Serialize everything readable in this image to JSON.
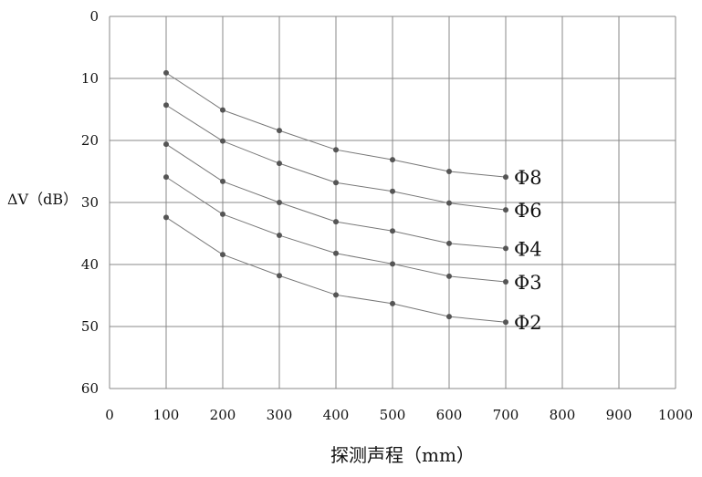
{
  "chart_data": {
    "type": "line",
    "xlabel": "探测声程（mm）",
    "ylabel": "ΔV（dB）",
    "xlim": [
      0,
      1000
    ],
    "ylim": [
      0,
      60
    ],
    "y_inverted": true,
    "grid": true,
    "x_ticks": [
      "0",
      "100",
      "200",
      "300",
      "400",
      "500",
      "600",
      "700",
      "800",
      "900",
      "1000"
    ],
    "y_ticks": [
      "0",
      "10",
      "20",
      "30",
      "40",
      "50",
      "60"
    ],
    "x": [
      100,
      200,
      300,
      400,
      500,
      600,
      700
    ],
    "series": [
      {
        "name": "Φ8",
        "values": [
          9.1,
          15.1,
          18.4,
          21.5,
          23.1,
          25.0,
          25.9
        ]
      },
      {
        "name": "Φ6",
        "values": [
          14.3,
          20.1,
          23.7,
          26.8,
          28.2,
          30.1,
          31.2
        ]
      },
      {
        "name": "Φ4",
        "values": [
          20.6,
          26.6,
          30.0,
          33.1,
          34.6,
          36.6,
          37.4
        ]
      },
      {
        "name": "Φ3",
        "values": [
          25.9,
          31.9,
          35.3,
          38.2,
          39.9,
          41.9,
          42.8
        ]
      },
      {
        "name": "Φ2",
        "values": [
          32.4,
          38.4,
          41.8,
          44.9,
          46.3,
          48.4,
          49.3
        ]
      }
    ],
    "colors": {
      "line": "#777777",
      "marker": "#555555",
      "grid": "#888888"
    }
  }
}
